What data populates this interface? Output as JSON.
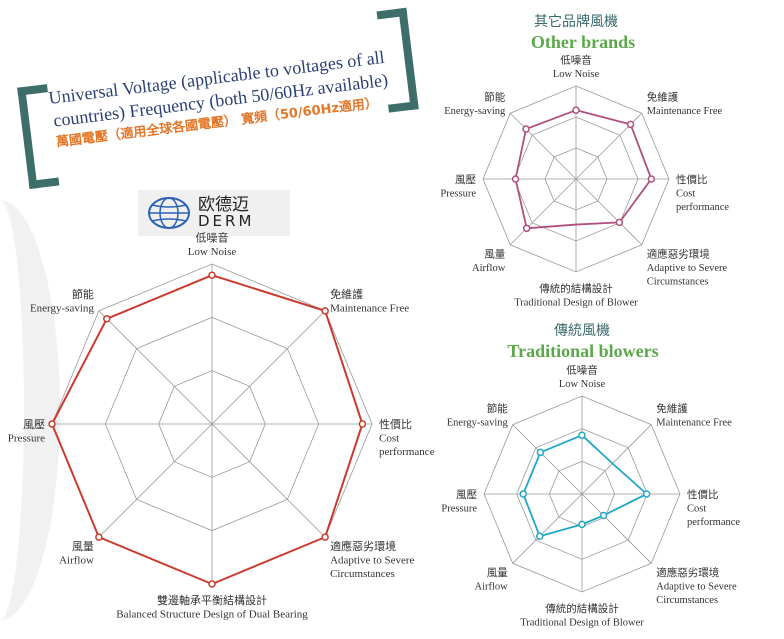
{
  "banner": {
    "line1": "Universal Voltage (applicable to voltages of all",
    "line2": "countries)   Frequency (both 50/60Hz available)",
    "line3": "萬國電壓（適用全球各國電壓）  寬頻（50/60Hz適用）"
  },
  "logo": {
    "cn": "欧德迈",
    "en": "DERM"
  },
  "colors": {
    "derm": "#cc3a2e",
    "other": "#b0507f",
    "traditional": "#22a6c8",
    "title_green": "#5aa84a",
    "bracket": "#3d6e6a"
  },
  "chart_data": [
    {
      "type": "radar",
      "title": "",
      "rlim": [
        0,
        1
      ],
      "rings": 3,
      "axes": [
        {
          "cn": "低噪音",
          "en": [
            "Low Noise"
          ]
        },
        {
          "cn": "免維護",
          "en": [
            "Maintenance Free"
          ]
        },
        {
          "cn": "性價比",
          "en": [
            "Cost",
            "performance"
          ]
        },
        {
          "cn": "適應惡劣環境",
          "en": [
            "Adaptive to Severe",
            "Circumstances"
          ]
        },
        {
          "cn": "雙邊軸承平衡結構設計",
          "en": [
            "Balanced Structure Design of Dual Bearing"
          ]
        },
        {
          "cn": "風量",
          "en": [
            "Airflow"
          ]
        },
        {
          "cn": "風壓",
          "en": [
            "Pressure"
          ]
        },
        {
          "cn": "節能",
          "en": [
            "Energy-saving"
          ]
        }
      ],
      "values": [
        0.93,
        1.0,
        0.94,
        1.0,
        1.0,
        1.0,
        1.0,
        0.93
      ],
      "markers": [
        true,
        true,
        true,
        true,
        true,
        true,
        true,
        true
      ],
      "color": "#cc3a2e"
    },
    {
      "type": "radar",
      "title_cn": "其它品牌風機",
      "title": "Other brands",
      "rlim": [
        0,
        1
      ],
      "rings": 3,
      "axes": [
        {
          "cn": "低噪音",
          "en": [
            "Low Noise"
          ]
        },
        {
          "cn": "免維護",
          "en": [
            "Maintenance Free"
          ]
        },
        {
          "cn": "性價比",
          "en": [
            "Cost",
            "performance"
          ]
        },
        {
          "cn": "適應惡劣環境",
          "en": [
            "Adaptive to Severe",
            "Circumstances"
          ]
        },
        {
          "cn": "傳統的結構設計",
          "en": [
            "Traditional Design of Blower"
          ]
        },
        {
          "cn": "風量",
          "en": [
            "Airflow"
          ]
        },
        {
          "cn": "風壓",
          "en": [
            "Pressure"
          ]
        },
        {
          "cn": "節能",
          "en": [
            "Energy-saving"
          ]
        }
      ],
      "values": [
        0.74,
        0.83,
        0.81,
        0.66,
        0.49,
        0.75,
        0.65,
        0.76
      ],
      "markers": [
        true,
        true,
        true,
        true,
        false,
        true,
        true,
        true
      ],
      "color": "#b0507f"
    },
    {
      "type": "radar",
      "title_cn": "傳統風機",
      "title": "Traditional blowers",
      "rlim": [
        0,
        1
      ],
      "rings": 3,
      "axes": [
        {
          "cn": "低噪音",
          "en": [
            "Low Noise"
          ]
        },
        {
          "cn": "免維護",
          "en": [
            "Maintenance Free"
          ]
        },
        {
          "cn": "性價比",
          "en": [
            "Cost",
            "performance"
          ]
        },
        {
          "cn": "適應惡劣環境",
          "en": [
            "Adaptive to Severe",
            "Circumstances"
          ]
        },
        {
          "cn": "傳統的結構設計",
          "en": [
            "Traditional Design of Blower"
          ]
        },
        {
          "cn": "風量",
          "en": [
            "Airflow"
          ]
        },
        {
          "cn": "風壓",
          "en": [
            "Pressure"
          ]
        },
        {
          "cn": "節能",
          "en": [
            "Energy-saving"
          ]
        }
      ],
      "values": [
        0.6,
        0.44,
        0.66,
        0.31,
        0.31,
        0.61,
        0.6,
        0.6
      ],
      "markers": [
        true,
        false,
        true,
        true,
        true,
        true,
        true,
        true
      ],
      "color": "#22a6c8"
    }
  ]
}
